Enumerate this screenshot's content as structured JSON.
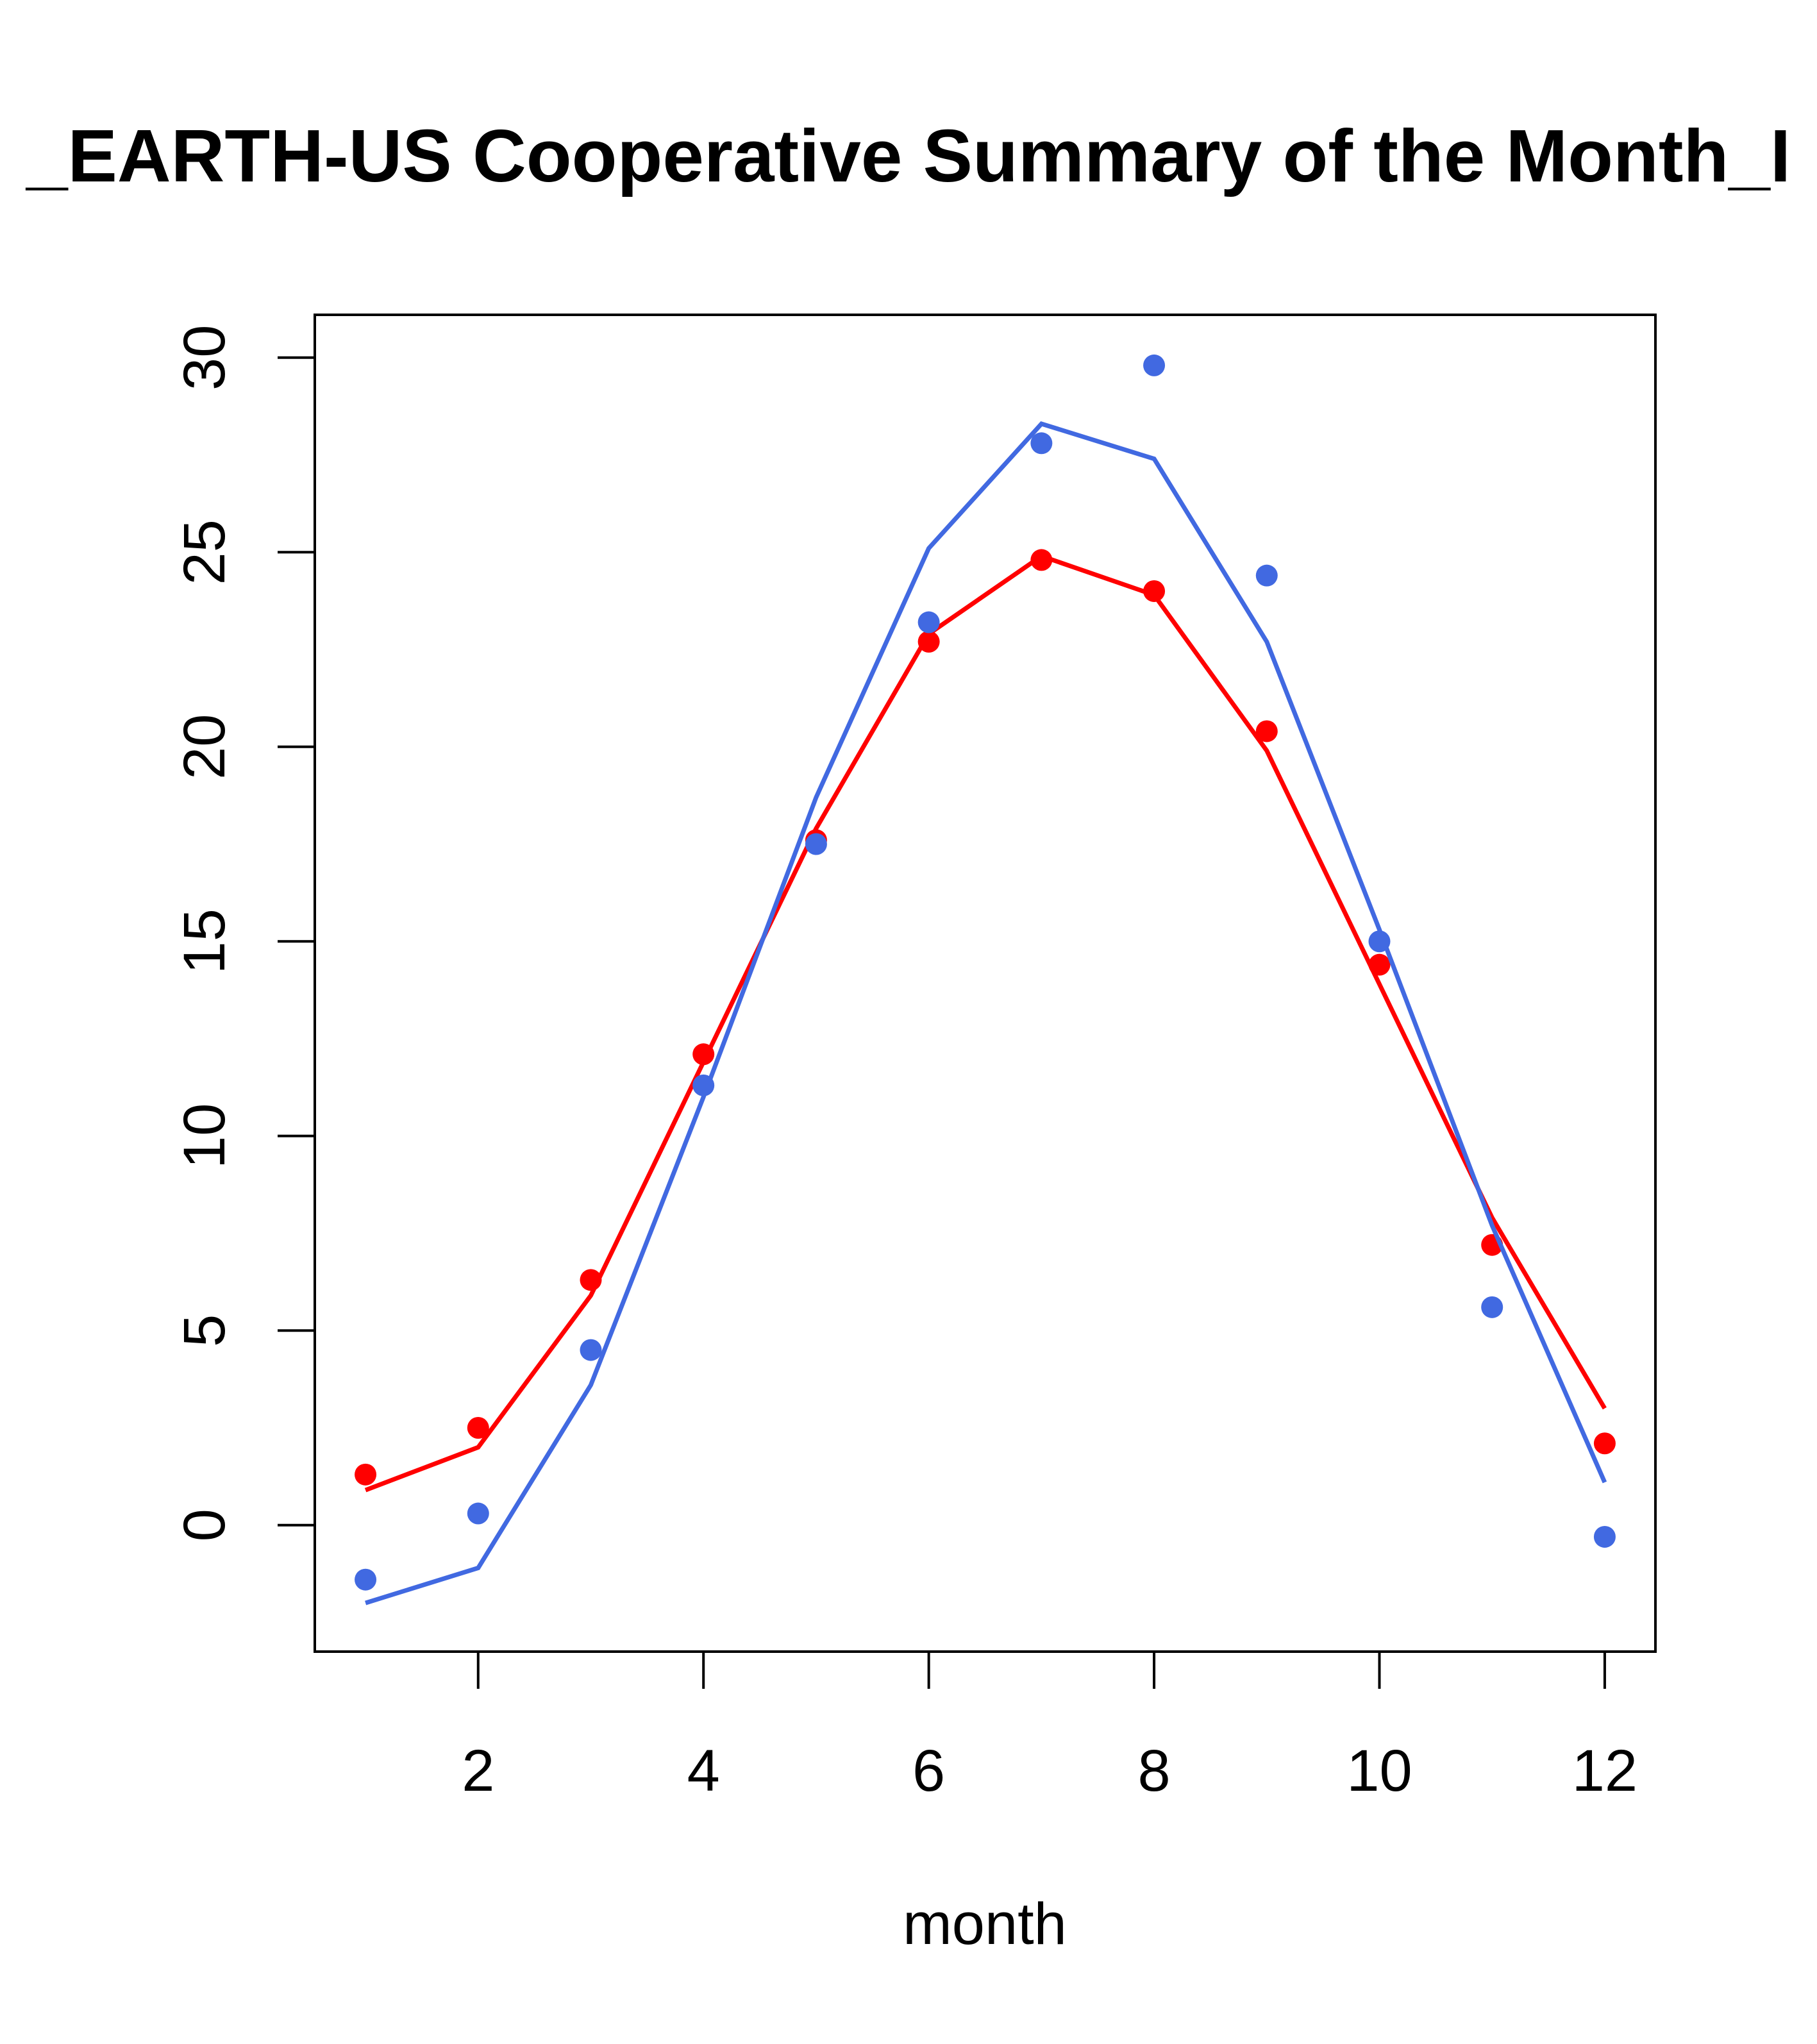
{
  "chart_data": {
    "type": "line",
    "title": "_EARTH-US Cooperative Summary of the Month_I",
    "xlabel": "month",
    "ylabel": "",
    "xlim": [
      0.55,
      12.45
    ],
    "ylim": [
      -3.25,
      31.1
    ],
    "x_ticks": [
      2,
      4,
      6,
      8,
      10,
      12
    ],
    "y_ticks": [
      0,
      5,
      10,
      15,
      20,
      25,
      30
    ],
    "grid": false,
    "legend": "none",
    "x": [
      1,
      2,
      3,
      4,
      5,
      6,
      7,
      8,
      9,
      10,
      11,
      12
    ],
    "series": [
      {
        "color": "#ff0000",
        "points": [
          1.3,
          2.5,
          6.3,
          12.1,
          17.6,
          22.7,
          24.8,
          24.0,
          20.4,
          14.4,
          7.2,
          2.1
        ],
        "fit": [
          0.9,
          2.0,
          5.9,
          11.9,
          17.9,
          22.9,
          24.9,
          23.9,
          19.9,
          13.9,
          7.9,
          3.0
        ]
      },
      {
        "color": "#4169e1",
        "points": [
          -1.4,
          0.3,
          4.5,
          11.3,
          17.5,
          23.2,
          27.8,
          29.8,
          24.4,
          15.0,
          5.6,
          -0.3
        ],
        "fit": [
          -2.0,
          -1.1,
          3.6,
          11.0,
          18.7,
          25.1,
          28.3,
          27.4,
          22.7,
          15.3,
          7.7,
          1.1
        ]
      }
    ]
  }
}
